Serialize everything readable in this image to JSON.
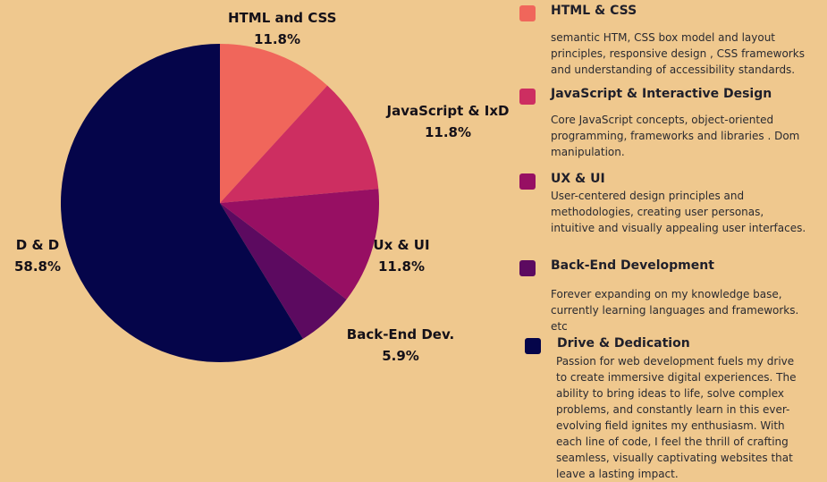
{
  "chart_data": {
    "type": "pie",
    "categories": [
      "HTML and CSS",
      "JavaScript & IxD",
      "Ux & UI",
      "Back-End Dev.",
      "D & D"
    ],
    "values": [
      11.8,
      11.8,
      11.8,
      5.9,
      58.8
    ],
    "value_labels": [
      "11.8%",
      "11.8%",
      "11.8%",
      "5.9%",
      "58.8%"
    ],
    "colors": [
      "#F0665B",
      "#CD2E61",
      "#970F63",
      "#5C0A60",
      "#05054A"
    ],
    "start_angle_deg": 0,
    "direction": "clockwise"
  },
  "legend": [
    {
      "title": "HTML & CSS",
      "color": "#F0665B",
      "description": "semantic HTM,  CSS box model and layout principles,  responsive design , CSS frameworks and understanding of accessibility standards."
    },
    {
      "title": "JavaScript & Interactive Design",
      "color": "#CD2E61",
      "description": "Core JavaScript concepts, object-oriented programming, frameworks and libraries . Dom manipulation."
    },
    {
      "title": "UX & UI",
      "color": "#970F63",
      "description": "User-centered design principles and methodologies,  creating user personas, intuitive and visually appealing user interfaces."
    },
    {
      "title": "Back-End Development",
      "color": "#5C0A60",
      "description": " Forever expanding on my knowledge base, currently learning languages and frameworks. etc"
    },
    {
      "title": "Drive & Dedication",
      "color": "#05054A",
      "description": "Passion for web development fuels my drive to create immersive digital experiences. The ability to bring ideas to life, solve complex problems, and constantly learn in this ever-evolving field ignites my enthusiasm. With each line of code, I feel the thrill of crafting seamless, visually captivating websites that leave a lasting impact."
    }
  ]
}
